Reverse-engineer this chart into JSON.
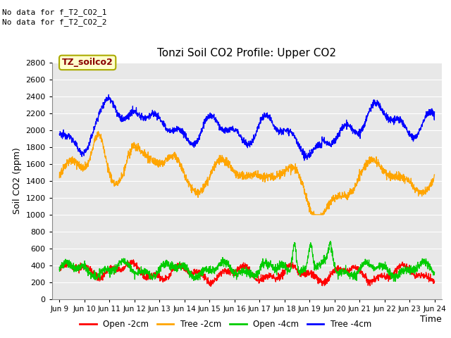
{
  "title": "Tonzi Soil CO2 Profile: Upper CO2",
  "ylabel": "Soil CO2 (ppm)",
  "xlabel": "Time",
  "no_data_text": [
    "No data for f_T2_CO2_1",
    "No data for f_T2_CO2_2"
  ],
  "legend_label": "TZ_soilco2",
  "ylim": [
    0,
    2800
  ],
  "yticks": [
    0,
    200,
    400,
    600,
    800,
    1000,
    1200,
    1400,
    1600,
    1800,
    2000,
    2200,
    2400,
    2600,
    2800
  ],
  "xtick_labels": [
    "Jun 9",
    "Jun 10",
    "Jun 11",
    "Jun 12",
    "Jun 13",
    "Jun 14",
    "Jun 15",
    "Jun 16",
    "Jun 17",
    "Jun 18",
    "Jun 19",
    "Jun 20",
    "Jun 21",
    "Jun 22",
    "Jun 23",
    "Jun 24"
  ],
  "xtick_positions": [
    9,
    10,
    11,
    12,
    13,
    14,
    15,
    16,
    17,
    18,
    19,
    20,
    21,
    22,
    23,
    24
  ],
  "colors": {
    "open_2cm": "#ff0000",
    "tree_2cm": "#ffa500",
    "open_4cm": "#00cc00",
    "tree_4cm": "#0000ff"
  },
  "legend_entries": [
    "Open -2cm",
    "Tree -2cm",
    "Open -4cm",
    "Tree -4cm"
  ],
  "fig_bg_color": "#ffffff",
  "plot_bg_color": "#e8e8e8",
  "grid_color": "#ffffff"
}
